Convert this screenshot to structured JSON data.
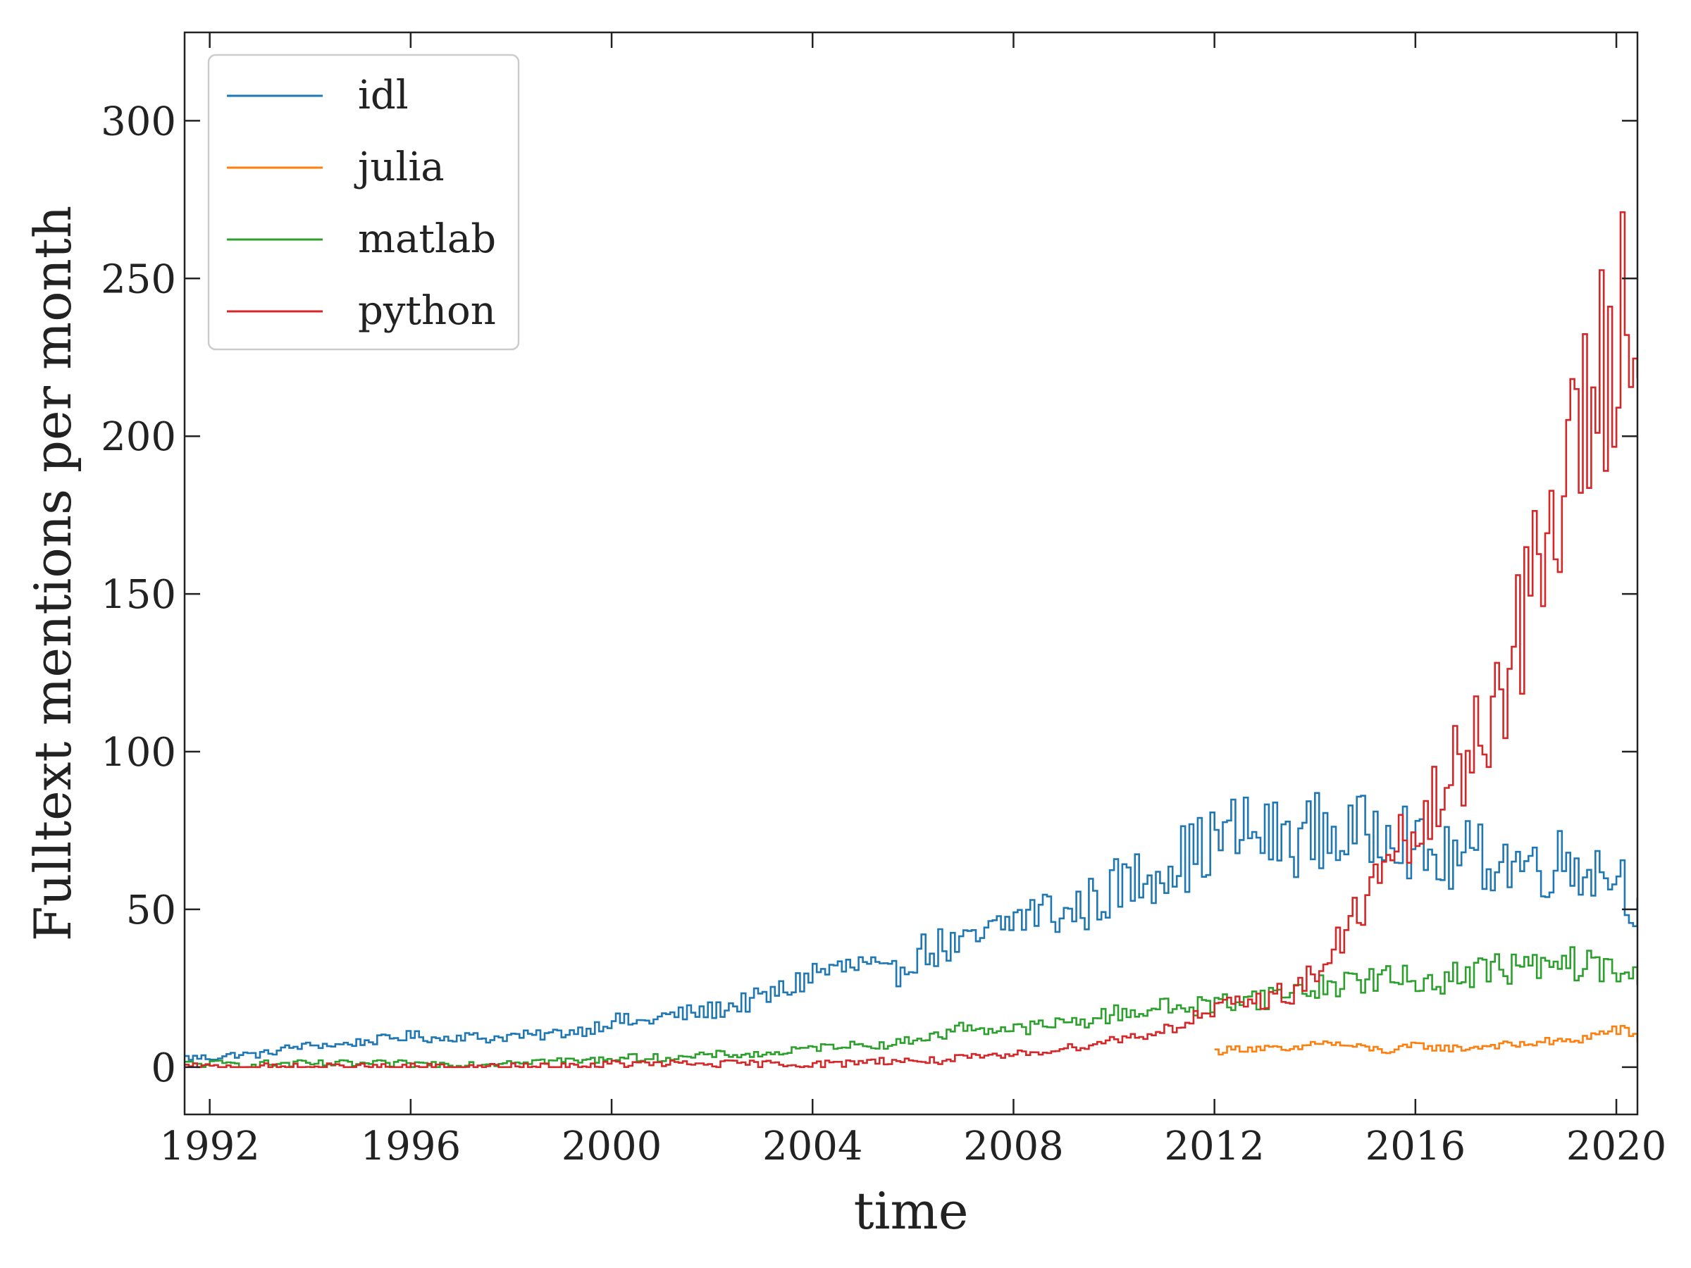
{
  "chart_data": {
    "type": "line",
    "drawstyle": "steps",
    "title": "",
    "xlabel": "time",
    "ylabel": "Fulltext mentions per month",
    "xlim": [
      1991.5,
      2020.42
    ],
    "ylim": [
      -15,
      328
    ],
    "x_ticks": [
      1992,
      1996,
      2000,
      2004,
      2008,
      2012,
      2016,
      2020
    ],
    "x_tick_labels": [
      "1992",
      "1996",
      "2000",
      "2004",
      "2008",
      "2012",
      "2016",
      "2020"
    ],
    "y_ticks": [
      0,
      50,
      100,
      150,
      200,
      250,
      300
    ],
    "y_tick_labels": [
      "0",
      "50",
      "100",
      "150",
      "200",
      "250",
      "300"
    ],
    "grid": false,
    "legend_position": "top-left",
    "series": [
      {
        "name": "idl",
        "color": "#1f77b4",
        "x": [
          1991.5,
          1992.0,
          1992.5,
          1993.0,
          1993.5,
          1994.0,
          1994.5,
          1995.0,
          1995.5,
          1996.0,
          1996.5,
          1997.0,
          1997.5,
          1998.0,
          1998.5,
          1999.0,
          1999.5,
          2000.0,
          2000.5,
          2001.0,
          2001.5,
          2002.0,
          2002.5,
          2003.0,
          2003.5,
          2004.0,
          2004.5,
          2005.0,
          2005.5,
          2006.0,
          2006.5,
          2007.0,
          2007.5,
          2008.0,
          2008.5,
          2009.0,
          2009.5,
          2010.0,
          2010.5,
          2011.0,
          2011.5,
          2012.0,
          2012.5,
          2013.0,
          2013.5,
          2014.0,
          2014.5,
          2015.0,
          2015.5,
          2016.0,
          2016.5,
          2017.0,
          2017.5,
          2018.0,
          2018.5,
          2019.0,
          2019.5,
          2020.0,
          2020.42
        ],
        "y": [
          3,
          3,
          4,
          4,
          6,
          7,
          7,
          8,
          9,
          10,
          9,
          10,
          9,
          10,
          10,
          11,
          12,
          15,
          14,
          16,
          17,
          18,
          20,
          22,
          25,
          30,
          31,
          32,
          28,
          36,
          38,
          38,
          42,
          47,
          50,
          48,
          52,
          57,
          60,
          65,
          67,
          72,
          75,
          73,
          72,
          75,
          73,
          74,
          80,
          68,
          65,
          67,
          66,
          65,
          64,
          66,
          63,
          62,
          50
        ]
      },
      {
        "name": "julia",
        "color": "#ff7f0e",
        "x": [
          2012.0,
          2012.5,
          2013.0,
          2013.5,
          2014.0,
          2014.5,
          2015.0,
          2015.5,
          2016.0,
          2016.5,
          2017.0,
          2017.5,
          2018.0,
          2018.5,
          2019.0,
          2019.5,
          2020.0,
          2020.42
        ],
        "y": [
          5,
          6,
          6,
          5,
          8,
          7,
          6,
          5,
          7,
          6,
          6,
          7,
          7,
          8,
          8,
          10,
          12,
          9
        ]
      },
      {
        "name": "matlab",
        "color": "#2ca02c",
        "x": [
          1991.5,
          1992.0,
          1992.5,
          1993.0,
          1993.5,
          1994.0,
          1994.5,
          1995.0,
          1995.5,
          1996.0,
          1996.5,
          1997.0,
          1997.5,
          1998.0,
          1998.5,
          1999.0,
          1999.5,
          2000.0,
          2000.5,
          2001.0,
          2001.5,
          2002.0,
          2002.5,
          2003.0,
          2003.5,
          2004.0,
          2004.5,
          2005.0,
          2005.5,
          2006.0,
          2006.5,
          2007.0,
          2007.5,
          2008.0,
          2008.5,
          2009.0,
          2009.5,
          2010.0,
          2010.5,
          2011.0,
          2011.5,
          2012.0,
          2012.5,
          2013.0,
          2013.5,
          2014.0,
          2014.5,
          2015.0,
          2015.5,
          2016.0,
          2016.5,
          2017.0,
          2017.5,
          2018.0,
          2018.5,
          2019.0,
          2019.5,
          2020.0,
          2020.42
        ],
        "y": [
          1,
          1,
          1,
          1,
          1,
          1,
          1,
          1,
          1,
          1,
          1,
          1,
          1,
          2,
          2,
          2,
          2,
          3,
          3,
          3,
          3,
          4,
          4,
          4,
          5,
          6,
          7,
          7,
          7,
          9,
          10,
          13,
          12,
          12,
          13,
          14,
          15,
          17,
          18,
          19,
          19,
          20,
          22,
          22,
          24,
          25,
          27,
          28,
          28,
          27,
          28,
          30,
          31,
          32,
          31,
          33,
          32,
          30,
          28
        ]
      },
      {
        "name": "python",
        "color": "#d62728",
        "x": [
          1991.5,
          1992.0,
          1993.0,
          1994.0,
          1995.0,
          1996.0,
          1997.0,
          1998.0,
          1999.0,
          2000.0,
          2000.5,
          2001.0,
          2001.5,
          2002.0,
          2002.5,
          2003.0,
          2003.5,
          2004.0,
          2004.5,
          2005.0,
          2005.5,
          2006.0,
          2006.5,
          2007.0,
          2007.5,
          2008.0,
          2008.5,
          2009.0,
          2009.5,
          2010.0,
          2010.5,
          2011.0,
          2011.5,
          2012.0,
          2012.5,
          2013.0,
          2013.5,
          2014.0,
          2014.5,
          2015.0,
          2015.5,
          2016.0,
          2016.5,
          2017.0,
          2017.5,
          2018.0,
          2018.5,
          2019.0,
          2019.5,
          2020.0,
          2020.42
        ],
        "y": [
          0,
          0,
          0,
          0,
          0,
          0,
          0,
          0,
          0,
          1,
          1,
          1,
          1,
          1,
          1,
          1,
          1,
          1,
          1,
          2,
          2,
          2,
          2,
          3,
          3,
          4,
          5,
          6,
          7,
          9,
          10,
          12,
          15,
          18,
          20,
          22,
          24,
          30,
          40,
          55,
          65,
          75,
          85,
          100,
          115,
          135,
          160,
          190,
          210,
          240,
          250
        ]
      }
    ]
  }
}
